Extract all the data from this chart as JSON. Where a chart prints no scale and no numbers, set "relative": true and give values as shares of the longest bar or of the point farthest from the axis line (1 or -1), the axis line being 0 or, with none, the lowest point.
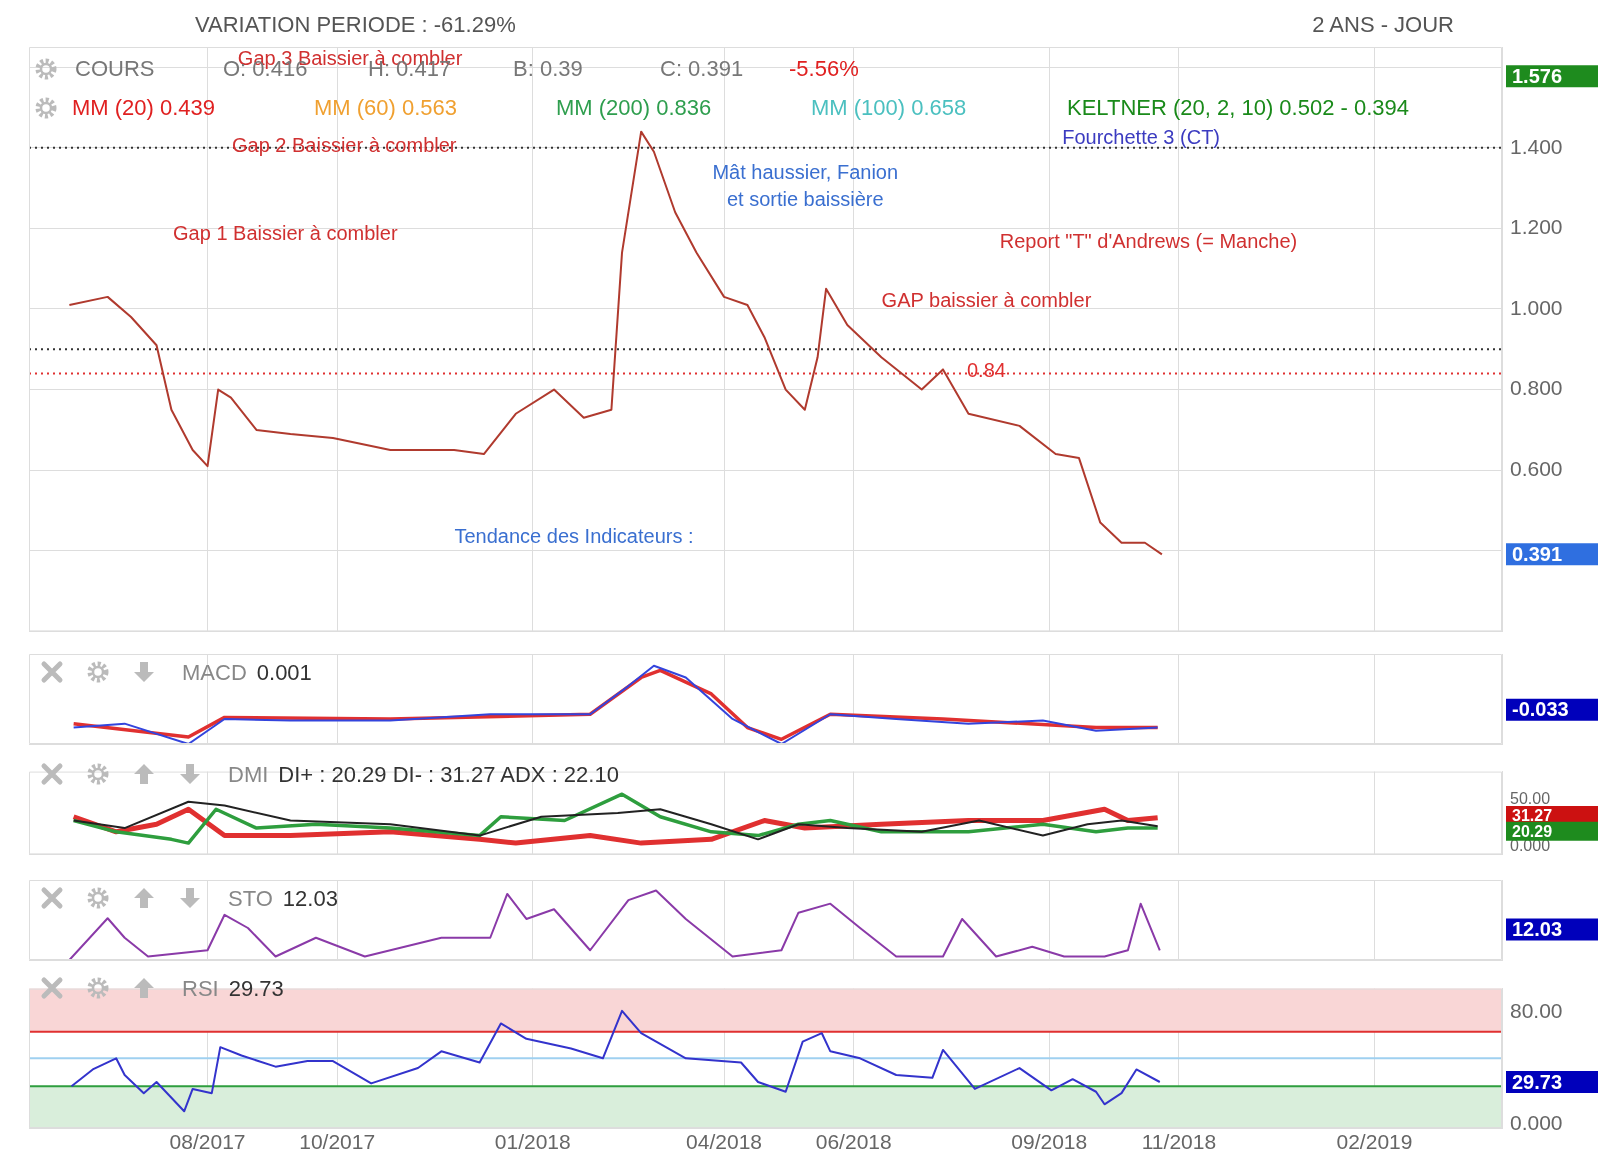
{
  "chart_data": [
    {
      "type": "line",
      "title": "VARIATION PERIODE : -61.29%",
      "subtitle": "2 ANS - JOUR",
      "x": [
        "2017-05-28",
        "2017-06-15",
        "2017-06-26",
        "2017-07-08",
        "2017-07-15",
        "2017-07-25",
        "2017-08-01",
        "2017-08-06",
        "2017-08-12",
        "2017-08-24",
        "2017-09-09",
        "2017-09-29",
        "2017-10-26",
        "2017-11-25",
        "2017-12-09",
        "2017-12-24",
        "2018-01-11",
        "2018-01-25",
        "2018-02-07",
        "2018-02-12",
        "2018-02-21",
        "2018-02-27",
        "2018-03-09",
        "2018-03-19",
        "2018-04-01",
        "2018-04-12",
        "2018-04-20",
        "2018-04-30",
        "2018-05-09",
        "2018-05-15",
        "2018-05-19",
        "2018-05-29",
        "2018-06-14",
        "2018-07-03",
        "2018-07-13",
        "2018-07-25",
        "2018-08-18",
        "2018-09-04",
        "2018-09-15",
        "2018-09-25",
        "2018-10-05",
        "2018-10-16",
        "2018-10-24"
      ],
      "series": [
        {
          "color": "#b03a2e",
          "values": [
            1.01,
            1.03,
            0.98,
            0.91,
            0.75,
            0.65,
            0.61,
            0.8,
            0.78,
            0.7,
            0.69,
            0.68,
            0.65,
            0.65,
            0.64,
            0.74,
            0.8,
            0.73,
            0.75,
            1.14,
            1.44,
            1.39,
            1.24,
            1.14,
            1.03,
            1.01,
            0.93,
            0.8,
            0.75,
            0.88,
            1.05,
            0.96,
            0.88,
            0.8,
            0.85,
            0.74,
            0.71,
            0.64,
            0.63,
            0.47,
            0.42,
            0.42,
            0.391
          ]
        }
      ],
      "xlim": [
        "2017-05-09",
        "2019-04-02"
      ],
      "xticks": [
        {
          "value": "2017-08-01",
          "label": null
        },
        {
          "value": "2017-10-01",
          "label": null
        },
        {
          "value": "2018-01-01",
          "label": null
        },
        {
          "value": "2018-04-01",
          "label": null
        },
        {
          "value": "2018-06-01",
          "label": null
        },
        {
          "value": "2018-09-01",
          "label": null
        },
        {
          "value": "2018-11-01",
          "label": null
        },
        {
          "value": "2019-02-01",
          "label": null
        }
      ],
      "ylim": [
        0.2,
        1.65
      ],
      "yticks": [
        {
          "value": 0.4,
          "label": null
        },
        {
          "value": 0.6,
          "label": "0.600"
        },
        {
          "value": 0.8,
          "label": "0.800"
        },
        {
          "value": 1.0,
          "label": "1.000"
        },
        {
          "value": 1.2,
          "label": "1.200"
        },
        {
          "value": 1.4,
          "label": "1.400"
        },
        {
          "value": 1.6,
          "label": null
        }
      ],
      "grid": true,
      "tick_labels": "y",
      "ref_lines": [
        {
          "axis": "y",
          "value": 1.4,
          "color": "#333333",
          "line_style": "dotted"
        },
        {
          "axis": "y",
          "value": 0.9,
          "color": "#333333",
          "line_style": "dotted"
        },
        {
          "axis": "y",
          "value": 0.84,
          "label": "0.84",
          "color": "#e03030",
          "line_style": "dotted"
        }
      ],
      "annotations": [
        "COURS",
        "O: 0.416",
        "H: 0.417",
        "B: 0.39",
        "C: 0.391",
        "-5.56%",
        "MM (20) 0.439",
        "MM (60) 0.563",
        "MM (200) 0.836",
        "MM (100) 0.658",
        "KELTNER (20, 2, 10) 0.502 - 0.394",
        "Gap 3 Baissier à combler",
        "Gap 2 Baissier à combler",
        "Gap 1 Baissier à combler",
        "Mât haussier, Fanion",
        "et sortie baissière",
        "Report \"T\" d'Andrews (= Manche)",
        "GAP baissier à combler",
        "Fourchette 3 (CT)",
        "Tendance des Indicateurs :",
        "1.576",
        "0.391"
      ]
    },
    {
      "type": "line",
      "title": "MACD",
      "subtitle": "0.001",
      "relative": true,
      "series": [
        {
          "color": "#3344dd",
          "x": [
            "2017-05-30",
            "2017-06-23",
            "2017-07-23",
            "2017-08-09",
            "2017-09-09",
            "2017-10-26",
            "2017-12-12",
            "2018-01-28",
            "2018-02-15",
            "2018-02-27",
            "2018-03-14",
            "2018-04-05",
            "2018-04-28",
            "2018-05-21",
            "2018-06-21",
            "2018-07-25",
            "2018-08-29",
            "2018-09-23",
            "2018-10-22"
          ],
          "values": [
            0.21,
            0.26,
            0,
            0.32,
            0.3,
            0.3,
            0.38,
            0.38,
            0.74,
            1,
            0.85,
            0.32,
            0,
            0.38,
            0.32,
            0.26,
            0.3,
            0.17,
            0.21
          ]
        },
        {
          "color": "#e03030",
          "x": [
            "2017-05-30",
            "2017-07-23",
            "2017-08-09",
            "2017-10-26",
            "2018-01-28",
            "2018-02-21",
            "2018-03-02",
            "2018-03-26",
            "2018-04-12",
            "2018-04-28",
            "2018-05-21",
            "2018-07-13",
            "2018-09-23",
            "2018-10-22"
          ],
          "values": [
            0.26,
            0.09,
            0.34,
            0.32,
            0.38,
            0.85,
            0.94,
            0.64,
            0.21,
            0.06,
            0.38,
            0.32,
            0.21,
            0.21
          ]
        }
      ],
      "xlim": [
        "2017-05-09",
        "2019-04-02"
      ],
      "xticks": [
        {
          "value": "2017-08-01",
          "label": null
        },
        {
          "value": "2017-10-01",
          "label": null
        },
        {
          "value": "2018-01-01",
          "label": null
        },
        {
          "value": "2018-04-01",
          "label": null
        },
        {
          "value": "2018-06-01",
          "label": null
        },
        {
          "value": "2018-09-01",
          "label": null
        },
        {
          "value": "2018-11-01",
          "label": null
        },
        {
          "value": "2019-02-01",
          "label": null
        }
      ],
      "grid": "x",
      "tick_labels": false,
      "annotations": [
        "-0.033"
      ]
    },
    {
      "type": "line",
      "title": "DMI",
      "subtitle": "DI+ : 20.29 DI- : 31.27 ADX : 22.10",
      "series": [
        {
          "color": "#222222",
          "x": [
            "2017-05-30",
            "2017-06-23",
            "2017-07-23",
            "2017-08-09",
            "2017-09-09",
            "2017-10-26",
            "2017-12-07",
            "2018-01-05",
            "2018-02-10",
            "2018-03-02",
            "2018-03-26",
            "2018-04-17",
            "2018-05-06",
            "2018-05-29",
            "2018-07-03",
            "2018-07-30",
            "2018-08-29",
            "2018-09-19",
            "2018-10-05",
            "2018-10-22"
          ],
          "values": [
            28,
            20,
            48,
            44,
            28,
            24,
            12,
            32,
            36,
            40,
            24,
            8,
            24,
            20,
            16,
            28,
            12,
            24,
            28,
            22
          ]
        },
        {
          "color": "#2e9e3e",
          "x": [
            "2017-05-30",
            "2017-06-19",
            "2017-07-15",
            "2017-07-23",
            "2017-08-05",
            "2017-08-24",
            "2017-09-21",
            "2017-10-26",
            "2017-12-07",
            "2017-12-17",
            "2018-01-16",
            "2018-02-12",
            "2018-03-02",
            "2018-03-26",
            "2018-04-17",
            "2018-05-06",
            "2018-05-21",
            "2018-06-14",
            "2018-07-25",
            "2018-08-29",
            "2018-09-23",
            "2018-10-08",
            "2018-10-22"
          ],
          "values": [
            28,
            16,
            8,
            4,
            40,
            20,
            24,
            20,
            12,
            32,
            28,
            56,
            32,
            16,
            12,
            24,
            28,
            16,
            16,
            24,
            16,
            20,
            20
          ]
        },
        {
          "color": "#e03030",
          "x": [
            "2017-05-30",
            "2017-06-19",
            "2017-07-08",
            "2017-07-23",
            "2017-08-09",
            "2017-09-09",
            "2017-10-26",
            "2017-12-07",
            "2017-12-24",
            "2018-01-28",
            "2018-02-21",
            "2018-03-26",
            "2018-04-20",
            "2018-05-09",
            "2018-06-14",
            "2018-07-25",
            "2018-08-29",
            "2018-09-27",
            "2018-10-08",
            "2018-10-22"
          ],
          "values": [
            32,
            16,
            24,
            40,
            12,
            12,
            16,
            8,
            4,
            12,
            4,
            8,
            28,
            20,
            24,
            28,
            28,
            40,
            28,
            31
          ]
        }
      ],
      "xlim": [
        "2017-05-09",
        "2019-04-02"
      ],
      "xticks": [
        {
          "value": "2017-08-01",
          "label": null
        },
        {
          "value": "2017-10-01",
          "label": null
        },
        {
          "value": "2018-01-01",
          "label": null
        },
        {
          "value": "2018-04-01",
          "label": null
        },
        {
          "value": "2018-06-01",
          "label": null
        },
        {
          "value": "2018-09-01",
          "label": null
        },
        {
          "value": "2018-11-01",
          "label": null
        },
        {
          "value": "2019-02-01",
          "label": null
        }
      ],
      "ylim": [
        -8,
        80
      ],
      "yticks": [
        {
          "value": 0,
          "label": "0.000"
        },
        {
          "value": 50,
          "label": "50.00"
        }
      ],
      "grid": "x",
      "tick_labels": "y",
      "annotations": [
        "31.27",
        "20.29"
      ]
    },
    {
      "type": "line",
      "title": "STO",
      "subtitle": "12.03",
      "relative": true,
      "x": [
        "2017-05-28",
        "2017-06-15",
        "2017-06-23",
        "2017-07-04",
        "2017-08-01",
        "2017-08-09",
        "2017-08-20",
        "2017-09-02",
        "2017-09-21",
        "2017-10-14",
        "2017-11-19",
        "2017-12-12",
        "2017-12-20",
        "2017-12-29",
        "2018-01-11",
        "2018-01-28",
        "2018-02-15",
        "2018-02-28",
        "2018-03-14",
        "2018-04-05",
        "2018-04-28",
        "2018-05-06",
        "2018-05-21",
        "2018-06-04",
        "2018-06-21",
        "2018-07-13",
        "2018-07-22",
        "2018-08-07",
        "2018-08-24",
        "2018-09-08",
        "2018-09-27",
        "2018-10-08",
        "2018-10-14",
        "2018-10-23"
      ],
      "series": [
        {
          "color": "#8a3aa8",
          "values": [
            0,
            0.6,
            0.32,
            0.05,
            0.14,
            0.65,
            0.46,
            0.05,
            0.32,
            0.05,
            0.32,
            0.32,
            0.95,
            0.59,
            0.73,
            0.14,
            0.86,
            1,
            0.59,
            0.05,
            0.14,
            0.68,
            0.81,
            0.46,
            0.05,
            0.05,
            0.59,
            0.05,
            0.19,
            0.05,
            0.05,
            0.14,
            0.81,
            0.14
          ]
        }
      ],
      "xlim": [
        "2017-05-09",
        "2019-04-02"
      ],
      "xticks": [
        {
          "value": "2017-08-01",
          "label": null
        },
        {
          "value": "2017-10-01",
          "label": null
        },
        {
          "value": "2018-01-01",
          "label": null
        },
        {
          "value": "2018-04-01",
          "label": null
        },
        {
          "value": "2018-06-01",
          "label": null
        },
        {
          "value": "2018-09-01",
          "label": null
        },
        {
          "value": "2018-11-01",
          "label": null
        },
        {
          "value": "2019-02-01",
          "label": null
        }
      ],
      "grid": "x",
      "tick_labels": false,
      "annotations": [
        "12.03"
      ]
    },
    {
      "type": "line",
      "title": "RSI",
      "subtitle": "29.73",
      "x": [
        "2017-05-29",
        "2017-06-08",
        "2017-06-19",
        "2017-06-23",
        "2017-07-02",
        "2017-07-08",
        "2017-07-21",
        "2017-07-25",
        "2017-08-03",
        "2017-08-07",
        "2017-08-17",
        "2017-09-02",
        "2017-09-17",
        "2017-09-29",
        "2017-10-17",
        "2017-11-08",
        "2017-11-19",
        "2017-12-07",
        "2017-12-17",
        "2017-12-29",
        "2018-01-19",
        "2018-02-03",
        "2018-02-12",
        "2018-02-21",
        "2018-03-14",
        "2018-04-09",
        "2018-04-17",
        "2018-04-30",
        "2018-05-08",
        "2018-05-17",
        "2018-05-21",
        "2018-06-04",
        "2018-06-21",
        "2018-07-08",
        "2018-07-13",
        "2018-07-28",
        "2018-08-18",
        "2018-09-02",
        "2018-09-12",
        "2018-09-23",
        "2018-09-27",
        "2018-10-05",
        "2018-10-12",
        "2018-10-23"
      ],
      "series": [
        {
          "color": "#3333cc",
          "values": [
            27,
            39,
            47,
            35,
            22,
            30,
            9,
            25,
            22,
            55,
            49,
            41,
            45,
            45,
            29,
            40,
            52,
            44,
            72,
            61,
            54,
            47,
            81,
            65,
            47,
            44,
            30,
            23,
            59,
            65,
            52,
            47,
            35,
            33,
            53,
            25,
            40,
            24,
            32,
            23,
            14,
            22,
            39,
            30
          ]
        }
      ],
      "xlim": [
        "2017-05-09",
        "2019-04-02"
      ],
      "xticks": [
        {
          "value": "2017-08-01",
          "label": "08/2017"
        },
        {
          "value": "2017-10-01",
          "label": "10/2017"
        },
        {
          "value": "2018-01-01",
          "label": "01/2018"
        },
        {
          "value": "2018-04-01",
          "label": "04/2018"
        },
        {
          "value": "2018-06-01",
          "label": "06/2018"
        },
        {
          "value": "2018-09-01",
          "label": "09/2018"
        },
        {
          "value": "2018-11-01",
          "label": "11/2018"
        },
        {
          "value": "2019-02-01",
          "label": "02/2019"
        }
      ],
      "ylim": [
        -3,
        97
      ],
      "yticks": [
        {
          "value": 0,
          "label": "0.000"
        },
        {
          "value": 80,
          "label": "80.00"
        }
      ],
      "grid": "x",
      "ref_lines": [
        {
          "axis": "y",
          "value": 66,
          "color": "#e03030"
        },
        {
          "axis": "y",
          "value": 47,
          "color": "#9fd0f0"
        },
        {
          "axis": "y",
          "value": 27,
          "color": "#2e9e3e"
        }
      ],
      "bands": [
        {
          "axis": "y",
          "from": 66,
          "to": 97,
          "color": "#f9d6d6"
        },
        {
          "axis": "y",
          "from": -3,
          "to": 27,
          "color": "#d9eedb"
        }
      ],
      "annotations": [
        "29.73"
      ]
    }
  ]
}
